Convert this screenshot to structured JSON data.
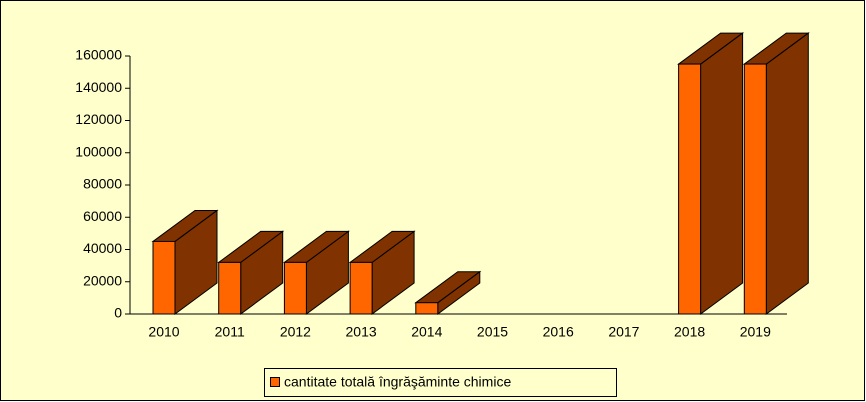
{
  "chart_data": {
    "type": "bar3d",
    "categories": [
      "2010",
      "2011",
      "2012",
      "2013",
      "2014",
      "2015",
      "2016",
      "2017",
      "2018",
      "2019"
    ],
    "series": [
      {
        "name": "cantitate totală îngrăşăminte chimice",
        "color": "#ff6600",
        "side_color": "#803300",
        "values": [
          45000,
          32000,
          32000,
          32000,
          7000,
          null,
          null,
          null,
          155000,
          155000
        ]
      }
    ],
    "ylim": [
      0,
      160000
    ],
    "yticks": [
      0,
      20000,
      40000,
      60000,
      80000,
      100000,
      120000,
      140000,
      160000
    ],
    "legend": "bottom"
  }
}
